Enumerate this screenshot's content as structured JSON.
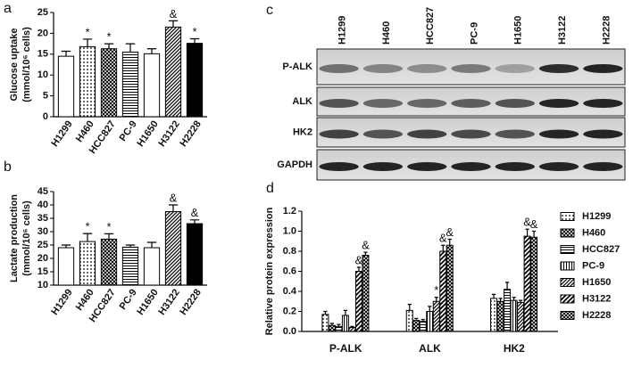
{
  "panel_labels": [
    "a",
    "b",
    "c",
    "d"
  ],
  "blot": {
    "columns": [
      "H1299",
      "H460",
      "HCC827",
      "PC-9",
      "H1650",
      "H3122",
      "H2228"
    ],
    "rows": [
      "P-ALK",
      "ALK",
      "HK2",
      "GAPDH"
    ]
  },
  "chart_data": [
    {
      "type": "bar",
      "ylabel": [
        "Glucose uptake",
        "(mmol/10⁶ cells)"
      ],
      "categories": [
        "H1299",
        "H460",
        "HCC827",
        "PC-9",
        "H1650",
        "H3122",
        "H2228"
      ],
      "values": [
        14.5,
        16.8,
        16.3,
        15.5,
        15.1,
        21.5,
        17.6
      ],
      "errors": [
        1.2,
        1.8,
        1.2,
        2.0,
        1.2,
        1.5,
        1.1
      ],
      "markers": [
        null,
        "*",
        "*",
        null,
        null,
        "&",
        "*"
      ],
      "fills": [
        "white",
        "dots",
        "cross",
        "hlines",
        "white",
        "diag",
        "black"
      ],
      "ylim": [
        0,
        25
      ],
      "yticks": [
        0,
        5,
        10,
        15,
        20,
        25
      ]
    },
    {
      "type": "bar",
      "ylabel": [
        "Lactate production",
        "(mmol/10⁶ cells)"
      ],
      "categories": [
        "H1299",
        "H460",
        "HCC827",
        "PC-9",
        "H1650",
        "H3122",
        "H2228"
      ],
      "values": [
        24.0,
        26.3,
        27.2,
        24.2,
        24.0,
        37.5,
        33.0
      ],
      "errors": [
        1.0,
        3.0,
        2.0,
        0.8,
        2.0,
        2.5,
        1.4
      ],
      "markers": [
        null,
        "*",
        "*",
        null,
        null,
        "&",
        "&"
      ],
      "fills": [
        "white",
        "dots",
        "cross",
        "hlines",
        "white",
        "diag",
        "black"
      ],
      "ylim": [
        10,
        45
      ],
      "yticks": [
        10,
        15,
        20,
        25,
        30,
        35,
        40,
        45
      ]
    },
    {
      "type": "bar",
      "ylabel": [
        "Relative protein expression"
      ],
      "categories": [
        "P-ALK",
        "ALK",
        "HK2"
      ],
      "series": [
        {
          "name": "H1299",
          "fill": "dots",
          "values": [
            0.17,
            0.21,
            0.33
          ],
          "errors": [
            0.03,
            0.06,
            0.04
          ],
          "markers": [
            null,
            null,
            null
          ]
        },
        {
          "name": "H460",
          "fill": "cross",
          "values": [
            0.06,
            0.11,
            0.3
          ],
          "errors": [
            0.02,
            0.02,
            0.03
          ],
          "markers": [
            null,
            null,
            null
          ]
        },
        {
          "name": "HCC827",
          "fill": "hlines",
          "values": [
            0.05,
            0.1,
            0.42
          ],
          "errors": [
            0.02,
            0.02,
            0.07
          ],
          "markers": [
            null,
            null,
            null
          ]
        },
        {
          "name": "PC-9",
          "fill": "vlines",
          "values": [
            0.16,
            0.2,
            0.31
          ],
          "errors": [
            0.05,
            0.05,
            0.03
          ],
          "markers": [
            null,
            null,
            null
          ]
        },
        {
          "name": "H1650",
          "fill": "diag",
          "values": [
            0.04,
            0.3,
            0.29
          ],
          "errors": [
            0.01,
            0.04,
            0.02
          ],
          "markers": [
            null,
            "*",
            null
          ]
        },
        {
          "name": "H3122",
          "fill": "diag2",
          "values": [
            0.6,
            0.8,
            0.95
          ],
          "errors": [
            0.04,
            0.06,
            0.07
          ],
          "markers": [
            "&",
            "&",
            "&"
          ]
        },
        {
          "name": "H2228",
          "fill": "cross",
          "values": [
            0.76,
            0.86,
            0.94
          ],
          "errors": [
            0.03,
            0.06,
            0.06
          ],
          "markers": [
            "&",
            "&",
            "&"
          ]
        }
      ],
      "ylim": [
        0,
        1.2
      ],
      "yticks": [
        {
          "value": 0,
          "label": "0.0"
        },
        {
          "value": 0.2,
          "label": "0.2"
        },
        {
          "value": 0.4,
          "label": "0.4"
        },
        {
          "value": 0.6,
          "label": "0.6"
        },
        {
          "value": 0.8,
          "label": "0.8"
        },
        {
          "value": 1.0,
          "label": "1.0"
        },
        {
          "value": 1.2,
          "label": "1.2"
        }
      ]
    }
  ]
}
